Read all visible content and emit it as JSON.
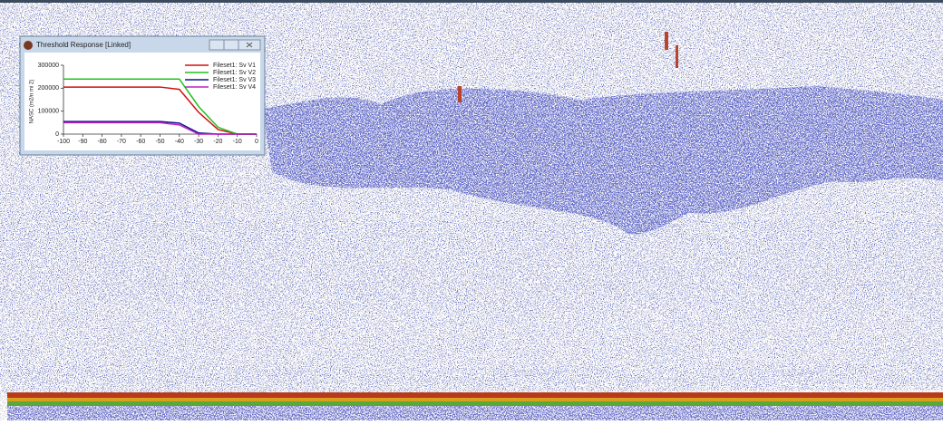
{
  "window": {
    "title": "Threshold Response [Linked]"
  },
  "chart_data": {
    "type": "line",
    "y_label": "NASC (m2/n mi 2)",
    "x": [
      -100,
      -90,
      -80,
      -70,
      -60,
      -50,
      -40,
      -30,
      -20,
      -10,
      0
    ],
    "series": [
      {
        "name": "Fileset1: Sv V1",
        "color": "#d01010",
        "values": [
          205000,
          205000,
          205000,
          205000,
          205000,
          205000,
          195000,
          95000,
          20000,
          0,
          0
        ]
      },
      {
        "name": "Fileset1: Sv V2",
        "color": "#20c020",
        "values": [
          240000,
          240000,
          240000,
          240000,
          240000,
          240000,
          240000,
          120000,
          30000,
          0,
          0
        ]
      },
      {
        "name": "Fileset1: Sv V3",
        "color": "#101090",
        "values": [
          55000,
          55000,
          55000,
          55000,
          55000,
          55000,
          48000,
          5000,
          0,
          0,
          0
        ]
      },
      {
        "name": "Fileset1: Sv V4",
        "color": "#c020c0",
        "values": [
          50000,
          50000,
          50000,
          50000,
          50000,
          50000,
          40000,
          0,
          0,
          0,
          0
        ]
      }
    ],
    "xlim": [
      -100,
      0
    ],
    "xticks": [
      -100,
      -90,
      -80,
      -70,
      -60,
      -50,
      -40,
      -30,
      -20,
      -10,
      0
    ],
    "ylim": [
      0,
      300000
    ],
    "yticks": [
      0,
      100000,
      200000,
      300000
    ]
  }
}
